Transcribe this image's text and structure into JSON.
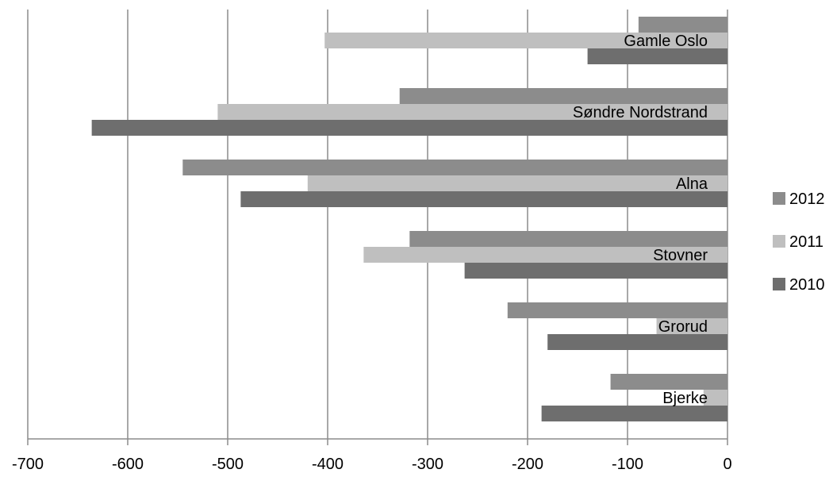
{
  "chart_data": {
    "type": "bar",
    "orientation": "horizontal",
    "categories": [
      "Gamle Oslo",
      "Søndre Nordstrand",
      "Alna",
      "Stovner",
      "Grorud",
      "Bjerke"
    ],
    "series": [
      {
        "name": "2012",
        "values": [
          -89,
          -328,
          -545,
          -318,
          -220,
          -117
        ],
        "color": "#8c8c8c"
      },
      {
        "name": "2011",
        "values": [
          -403,
          -510,
          -420,
          -364,
          -71,
          -24
        ],
        "color": "#bfbfbf"
      },
      {
        "name": "2010",
        "values": [
          -140,
          -636,
          -487,
          -263,
          -180,
          -186
        ],
        "color": "#6e6e6e"
      }
    ],
    "xlim": [
      -700,
      0
    ],
    "x_ticks": [
      -700,
      -600,
      -500,
      -400,
      -300,
      -200,
      -100,
      0
    ],
    "grid": "vertical",
    "legend_position": "right",
    "title": "",
    "xlabel": "",
    "ylabel": ""
  }
}
